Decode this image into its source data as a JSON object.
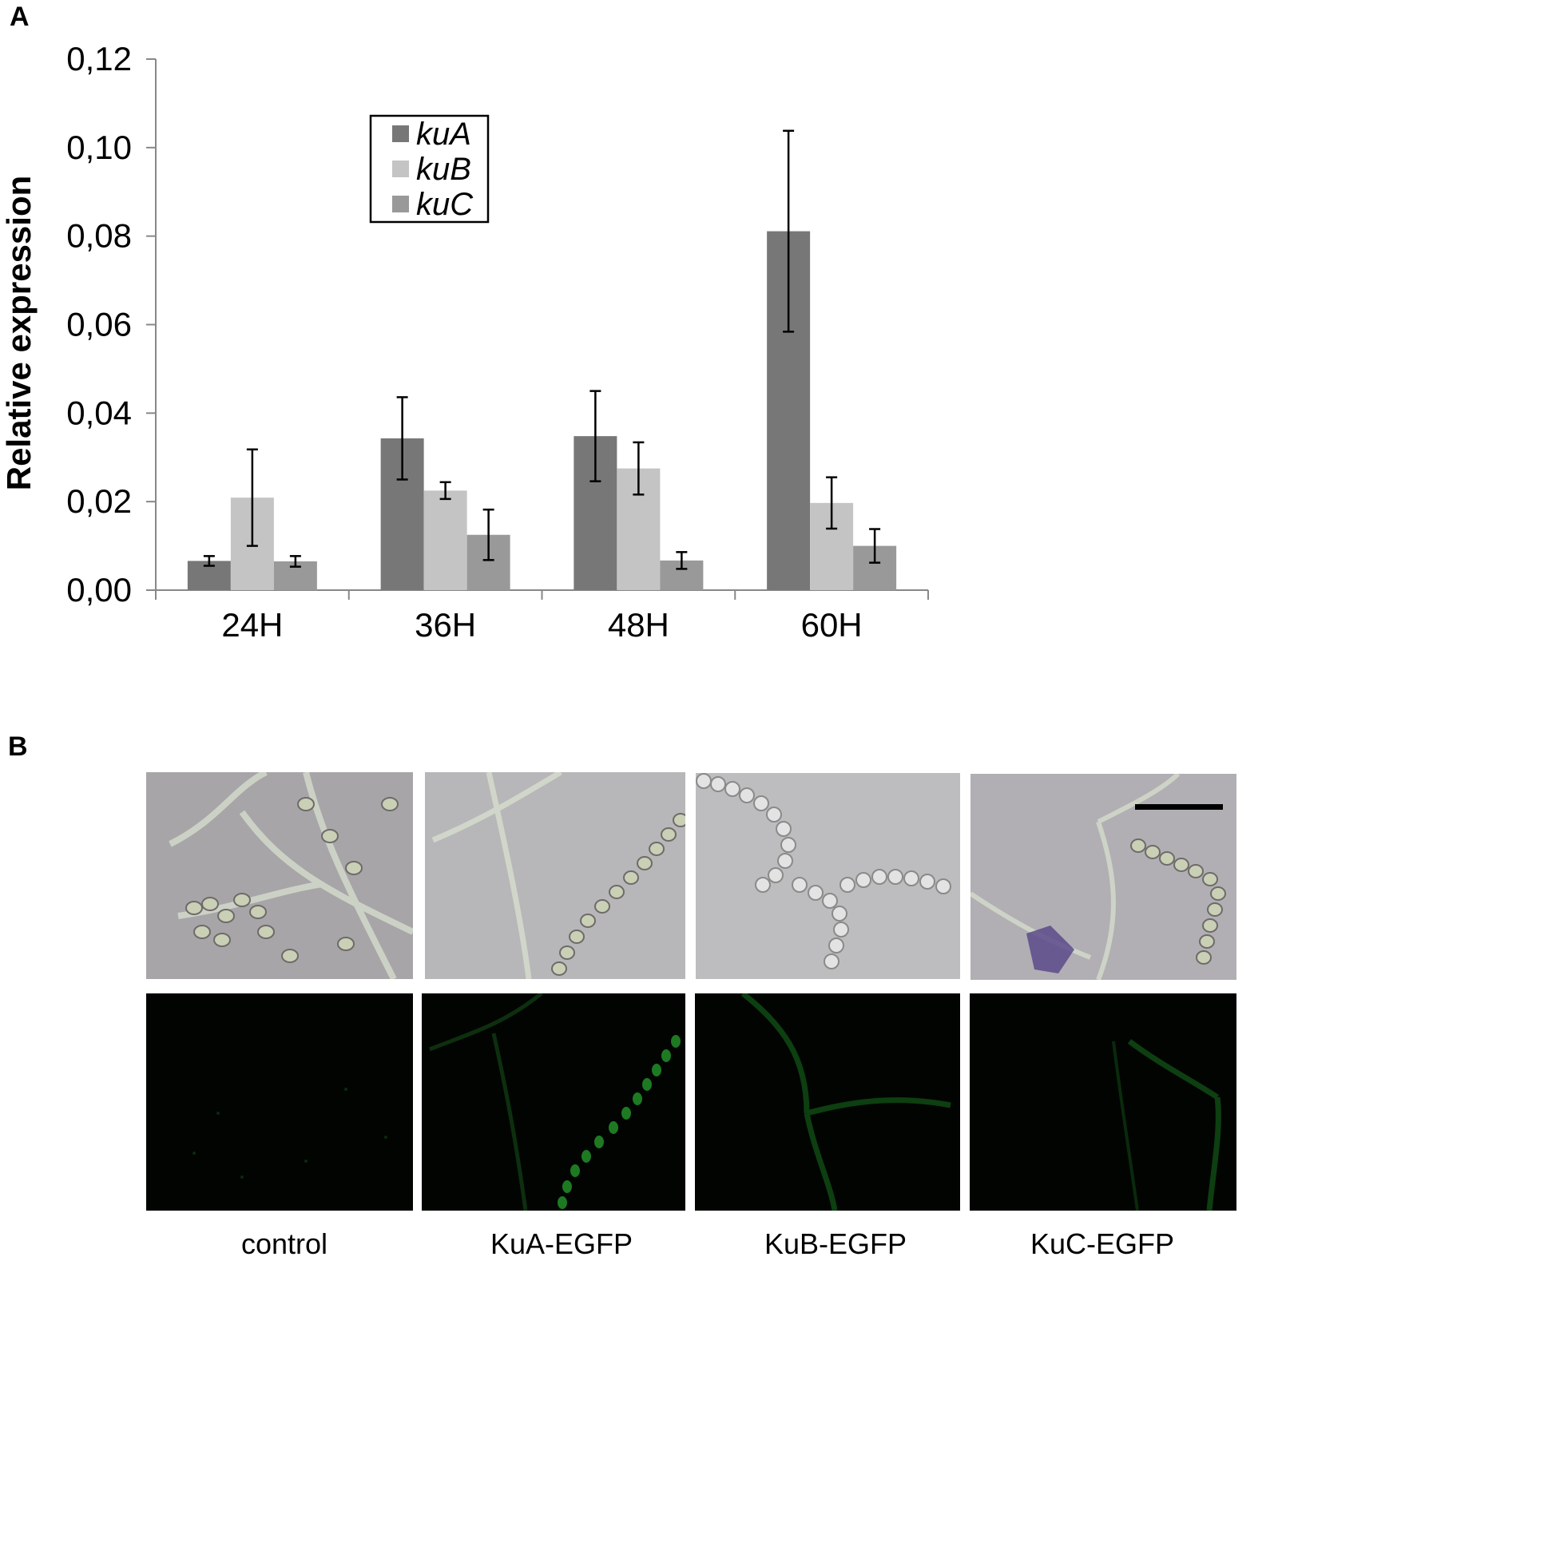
{
  "panels": {
    "a": "A",
    "b": "B"
  },
  "chart_data": {
    "type": "bar",
    "categories": [
      "24H",
      "36H",
      "48H",
      "60H"
    ],
    "ylabel": "Relative expression",
    "ylim": [
      0,
      0.12
    ],
    "yticks": [
      "0,00",
      "0,02",
      "0,04",
      "0,06",
      "0,08",
      "0,10",
      "0,12"
    ],
    "legend_position": "top-left",
    "series": [
      {
        "name": "kuA",
        "color": "#777777",
        "values": [
          0.0066,
          0.0343,
          0.0348,
          0.0811
        ],
        "errors": [
          0.0011,
          0.0093,
          0.0102,
          0.0227
        ]
      },
      {
        "name": "kuB",
        "color": "#c4c4c4",
        "values": [
          0.0209,
          0.0225,
          0.0275,
          0.0197
        ],
        "errors": [
          0.0109,
          0.0019,
          0.0059,
          0.0058
        ]
      },
      {
        "name": "kuC",
        "color": "#999999",
        "values": [
          0.0065,
          0.0125,
          0.0067,
          0.01
        ],
        "errors": [
          0.0012,
          0.0057,
          0.0019,
          0.0038
        ]
      }
    ]
  },
  "micrographs": {
    "labels": [
      "control",
      "KuA-EGFP",
      "KuB-EGFP",
      "KuC-EGFP"
    ]
  }
}
